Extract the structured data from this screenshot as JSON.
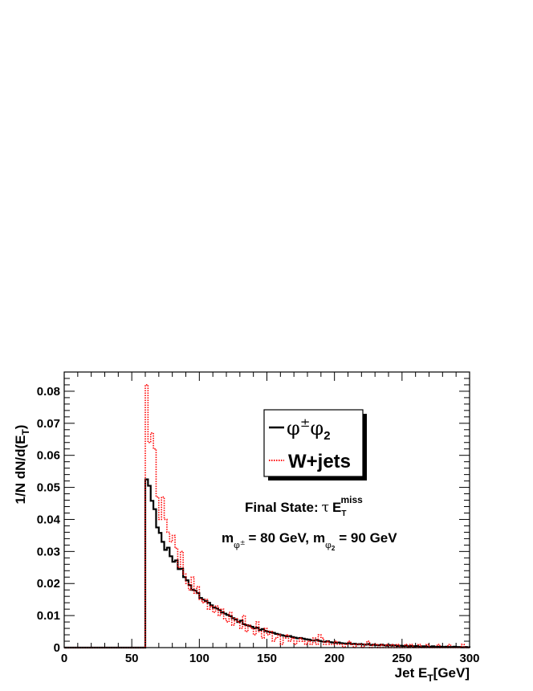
{
  "chart_data": {
    "type": "histogram",
    "xlabel_prefix": "Jet E",
    "xlabel_sub": "T",
    "xlabel_suffix": "[GeV]",
    "ylabel_prefix": "1/N dN/d(E",
    "ylabel_sub": "T",
    "ylabel_suffix": ")",
    "xlim": [
      0,
      300
    ],
    "ylim": [
      0,
      0.086
    ],
    "xticks": [
      "0",
      "50",
      "100",
      "150",
      "200",
      "250",
      "300"
    ],
    "yticks": [
      "0",
      "0.01",
      "0.02",
      "0.03",
      "0.04",
      "0.05",
      "0.06",
      "0.07",
      "0.08"
    ],
    "bin_width": 2,
    "legend": {
      "placement": "top-right",
      "entries": [
        {
          "phi": "φ",
          "pm": "±",
          "phi2": "φ",
          "sub": "2"
        },
        {
          "label": "W+jets"
        }
      ]
    },
    "annotations": {
      "final_state_label": "Final State:",
      "tau": "τ",
      "e_letter": "E",
      "e_sub": "T",
      "e_sup": "miss",
      "mass_m1": "m",
      "mass_phi_sub": "φ",
      "mass_pm": "±",
      "mass_eq1": "= 80 GeV,",
      "mass_m2": "m",
      "mass_phi2_sub": "φ",
      "mass_2": "2",
      "mass_eq2": "= 90 GeV"
    },
    "series": [
      {
        "color": "#000000",
        "style": "solid",
        "x": [
          60,
          62,
          64,
          66,
          68,
          70,
          72,
          74,
          76,
          78,
          80,
          82,
          84,
          86,
          88,
          90,
          92,
          94,
          96,
          98,
          100,
          102,
          104,
          106,
          108,
          110,
          112,
          114,
          116,
          118,
          120,
          122,
          124,
          126,
          128,
          130,
          132,
          134,
          136,
          138,
          140,
          142,
          144,
          146,
          148,
          150,
          152,
          154,
          156,
          158,
          160,
          162,
          164,
          166,
          168,
          170,
          172,
          174,
          176,
          178,
          180,
          182,
          184,
          186,
          188,
          190,
          192,
          194,
          196,
          198,
          200,
          202,
          204,
          206,
          208,
          210,
          212,
          214,
          216,
          218,
          220,
          222,
          224,
          226,
          228,
          230,
          232,
          234,
          236,
          238,
          240,
          242,
          244,
          246,
          248,
          250,
          252,
          254,
          256,
          258,
          260,
          262,
          264,
          266,
          268,
          270,
          272,
          274,
          276,
          278,
          280,
          282,
          284,
          286,
          288,
          290,
          292,
          294,
          296,
          298
        ],
        "values": [
          0.0525,
          0.0505,
          0.0458,
          0.0432,
          0.0375,
          0.0358,
          0.033,
          0.0305,
          0.0312,
          0.0285,
          0.0268,
          0.0272,
          0.0245,
          0.0246,
          0.022,
          0.021,
          0.0195,
          0.018,
          0.0178,
          0.017,
          0.0155,
          0.015,
          0.0145,
          0.014,
          0.0132,
          0.0125,
          0.0122,
          0.0117,
          0.011,
          0.0106,
          0.0102,
          0.0098,
          0.0092,
          0.0088,
          0.008,
          0.0084,
          0.0073,
          0.007,
          0.0068,
          0.0065,
          0.006,
          0.0062,
          0.0055,
          0.0058,
          0.0052,
          0.005,
          0.0048,
          0.0046,
          0.0043,
          0.0041,
          0.0039,
          0.0037,
          0.0035,
          0.0036,
          0.0033,
          0.0031,
          0.0029,
          0.003,
          0.0028,
          0.0026,
          0.0025,
          0.0023,
          0.0022,
          0.0024,
          0.0021,
          0.0019,
          0.0018,
          0.002,
          0.0017,
          0.0016,
          0.0015,
          0.0016,
          0.0014,
          0.0013,
          0.0012,
          0.0014,
          0.0011,
          0.0012,
          0.001,
          0.0011,
          0.001,
          0.0009,
          0.0011,
          0.0008,
          0.0009,
          0.0008,
          0.0007,
          0.0009,
          0.0007,
          0.0006,
          0.0008,
          0.0006,
          0.0007,
          0.0005,
          0.0006,
          0.0005,
          0.0006,
          0.0004,
          0.0005,
          0.0004,
          0.0005,
          0.0003,
          0.0004,
          0.0004,
          0.0003,
          0.0003,
          0.0004,
          0.0002,
          0.0003,
          0.0003,
          0.0002,
          0.0003,
          0.0002,
          0.0002,
          0.0003,
          0.0002,
          0.0002,
          0.0001,
          0.0002,
          0.0001
        ]
      },
      {
        "name": "W+jets",
        "color": "#ff0000",
        "style": "dotted",
        "x": [
          60,
          62,
          64,
          66,
          68,
          70,
          72,
          74,
          76,
          78,
          80,
          82,
          84,
          86,
          88,
          90,
          92,
          94,
          96,
          98,
          100,
          102,
          104,
          106,
          108,
          110,
          112,
          114,
          116,
          118,
          120,
          122,
          124,
          126,
          128,
          130,
          132,
          134,
          136,
          138,
          140,
          142,
          144,
          146,
          148,
          150,
          152,
          154,
          156,
          158,
          160,
          162,
          164,
          166,
          168,
          170,
          172,
          174,
          176,
          178,
          180,
          182,
          184,
          186,
          188,
          190,
          192,
          194,
          196,
          198,
          200,
          202,
          204,
          206,
          208,
          210,
          212,
          214,
          216,
          218,
          220,
          222,
          224,
          226,
          228,
          230,
          232,
          234,
          236,
          238,
          240,
          242,
          244,
          246,
          248,
          250,
          252,
          254,
          256,
          258,
          260,
          262,
          264,
          266,
          268,
          270,
          272,
          274,
          276,
          278,
          280,
          282,
          284,
          286,
          288,
          290,
          292,
          294,
          296,
          298
        ],
        "values": [
          0.082,
          0.064,
          0.067,
          0.062,
          0.047,
          0.04,
          0.047,
          0.04,
          0.036,
          0.033,
          0.035,
          0.031,
          0.025,
          0.03,
          0.023,
          0.02,
          0.018,
          0.022,
          0.017,
          0.019,
          0.015,
          0.014,
          0.015,
          0.012,
          0.013,
          0.011,
          0.013,
          0.01,
          0.012,
          0.009,
          0.008,
          0.011,
          0.007,
          0.009,
          0.008,
          0.006,
          0.01,
          0.005,
          0.007,
          0.006,
          0.004,
          0.008,
          0.005,
          0.003,
          0.006,
          0.004,
          0.005,
          0.002,
          0.003,
          0.004,
          0.001,
          0.003,
          0.004,
          0.002,
          0.003,
          0.001,
          0.002,
          0.003,
          0.002,
          0.001,
          0.002,
          0.001,
          0.003,
          0.001,
          0.004,
          0.003,
          0.001,
          0.002,
          0.001,
          0.001,
          0.002,
          0.001,
          0.001,
          0.0,
          0.001,
          0.002,
          0.001,
          0.0,
          0.001,
          0.001,
          0.0,
          0.001,
          0.002,
          0.0,
          0.001,
          0.001,
          0.0,
          0.001,
          0.0,
          0.001,
          0.0,
          0.001,
          0.0,
          0.001,
          0.0,
          0.0,
          0.001,
          0.0,
          0.001,
          0.0,
          0.0,
          0.001,
          0.0,
          0.0,
          0.001,
          0.0,
          0.0,
          0.0,
          0.001,
          0.0,
          0.0,
          0.0,
          0.001,
          0.0,
          0.0,
          0.0,
          0.0,
          0.001,
          0.0,
          0.0
        ]
      }
    ]
  }
}
